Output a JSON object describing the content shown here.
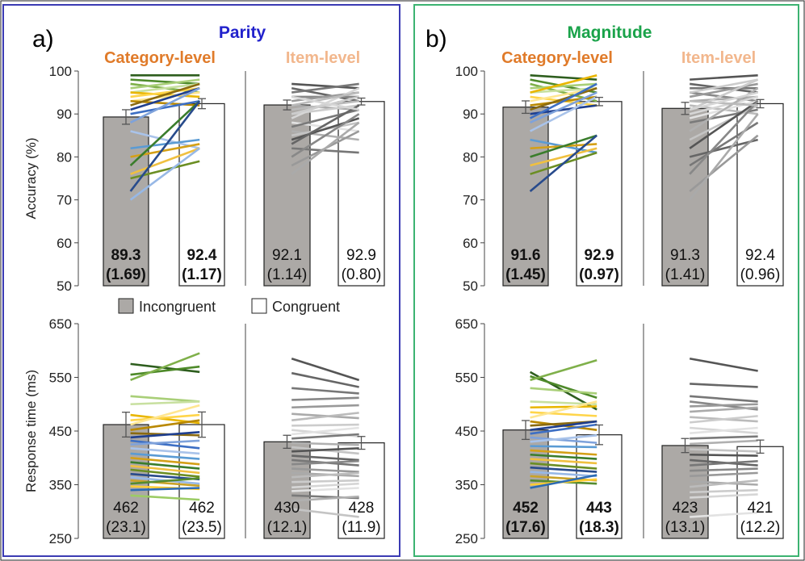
{
  "chart_data": {
    "type": "bar",
    "legend": {
      "items": [
        {
          "label": "Incongruent",
          "color": "#aca9a6"
        },
        {
          "label": "Congruent",
          "color": "#ffffff"
        }
      ],
      "placement": "center"
    },
    "panels": [
      {
        "letter": "a)",
        "task": "Parity",
        "task_color": "#2222cc",
        "border_color": "#3b3bb3",
        "ylabel_acc": "Accuracy (%)",
        "ylabel_rt": "Response time (ms)",
        "acc_ylim": [
          50,
          100
        ],
        "acc_ticks": [
          "50",
          "60",
          "70",
          "80",
          "90",
          "100"
        ],
        "rt_ylim": [
          250,
          650
        ],
        "rt_ticks": [
          "250",
          "350",
          "450",
          "550",
          "650"
        ],
        "conditions": [
          {
            "title": "Category-level",
            "title_color": "#e07b2a",
            "acc": {
              "values": [
                89.3,
                92.4
              ],
              "err": [
                1.69,
                1.17
              ],
              "labels": [
                "89.3",
                "92.4"
              ],
              "se": [
                "(1.69)",
                "(1.17)"
              ],
              "bold": true
            },
            "rt": {
              "values": [
                462,
                462
              ],
              "err": [
                23.1,
                23.5
              ],
              "labels": [
                "462",
                "462"
              ],
              "se": [
                "(23.1)",
                "(23.5)"
              ],
              "bold": false
            }
          },
          {
            "title": "Item-level",
            "title_color": "#f2b78d",
            "acc": {
              "values": [
                92.1,
                92.9
              ],
              "err": [
                1.14,
                0.8
              ],
              "labels": [
                "92.1",
                "92.9"
              ],
              "se": [
                "(1.14)",
                "(0.80)"
              ],
              "bold": false
            },
            "rt": {
              "values": [
                430,
                428
              ],
              "err": [
                12.1,
                11.9
              ],
              "labels": [
                "430",
                "428"
              ],
              "se": [
                "(12.1)",
                "(11.9)"
              ],
              "bold": false
            }
          }
        ]
      },
      {
        "letter": "b)",
        "task": "Magnitude",
        "task_color": "#1aa34a",
        "border_color": "#3cb371",
        "ylabel_acc": "",
        "ylabel_rt": "",
        "acc_ylim": [
          50,
          100
        ],
        "acc_ticks": [
          "50",
          "60",
          "70",
          "80",
          "90",
          "100"
        ],
        "rt_ylim": [
          250,
          650
        ],
        "rt_ticks": [
          "250",
          "350",
          "450",
          "550",
          "650"
        ],
        "conditions": [
          {
            "title": "Category-level",
            "title_color": "#e07b2a",
            "acc": {
              "values": [
                91.6,
                92.9
              ],
              "err": [
                1.45,
                0.97
              ],
              "labels": [
                "91.6",
                "92.9"
              ],
              "se": [
                "(1.45)",
                "(0.97)"
              ],
              "bold": true
            },
            "rt": {
              "values": [
                452,
                443
              ],
              "err": [
                17.6,
                18.3
              ],
              "labels": [
                "452",
                "443"
              ],
              "se": [
                "(17.6)",
                "(18.3)"
              ],
              "bold": true
            }
          },
          {
            "title": "Item-level",
            "title_color": "#f2b78d",
            "acc": {
              "values": [
                91.3,
                92.4
              ],
              "err": [
                1.41,
                0.96
              ],
              "labels": [
                "91.3",
                "92.4"
              ],
              "se": [
                "(1.41)",
                "(0.96)"
              ],
              "bold": false
            },
            "rt": {
              "values": [
                423,
                421
              ],
              "err": [
                13.1,
                12.2
              ],
              "labels": [
                "423",
                "421"
              ],
              "se": [
                "(13.1)",
                "(12.2)"
              ],
              "bold": false
            }
          }
        ]
      }
    ],
    "participant_lines": {
      "a_cat_acc": [
        [
          99,
          99
        ],
        [
          98,
          97
        ],
        [
          97,
          95
        ],
        [
          96,
          98
        ],
        [
          95,
          97
        ],
        [
          95,
          94
        ],
        [
          94,
          96
        ],
        [
          93,
          95
        ],
        [
          93,
          92
        ],
        [
          92,
          97
        ],
        [
          91,
          96
        ],
        [
          90,
          93
        ],
        [
          88,
          96
        ],
        [
          86,
          82
        ],
        [
          82,
          84
        ],
        [
          80,
          83
        ],
        [
          78,
          93
        ],
        [
          76,
          82
        ],
        [
          75,
          79
        ],
        [
          72,
          93
        ],
        [
          70,
          82
        ]
      ],
      "a_item_acc": [
        [
          97,
          96
        ],
        [
          96,
          93
        ],
        [
          95,
          97
        ],
        [
          94,
          94
        ],
        [
          93,
          95
        ],
        [
          92,
          91
        ],
        [
          91,
          93
        ],
        [
          90,
          92
        ],
        [
          89,
          96
        ],
        [
          88,
          86
        ],
        [
          87,
          91
        ],
        [
          86,
          84
        ],
        [
          85,
          88
        ],
        [
          84,
          89
        ],
        [
          83,
          92
        ],
        [
          82,
          81
        ],
        [
          80,
          90
        ],
        [
          78,
          86
        ],
        [
          76,
          88
        ],
        [
          92,
          95
        ],
        [
          90,
          94
        ],
        [
          94,
          91
        ]
      ],
      "b_cat_acc": [
        [
          99,
          98
        ],
        [
          98,
          95
        ],
        [
          97,
          93
        ],
        [
          96,
          97
        ],
        [
          95,
          96
        ],
        [
          95,
          99
        ],
        [
          94,
          92
        ],
        [
          93,
          96
        ],
        [
          92,
          94
        ],
        [
          91,
          96
        ],
        [
          90,
          92
        ],
        [
          89,
          97
        ],
        [
          88,
          95
        ],
        [
          86,
          94
        ],
        [
          84,
          81
        ],
        [
          82,
          83
        ],
        [
          80,
          85
        ],
        [
          78,
          82
        ],
        [
          76,
          81
        ],
        [
          72,
          85
        ]
      ],
      "b_item_acc": [
        [
          98,
          99
        ],
        [
          97,
          95
        ],
        [
          96,
          96
        ],
        [
          95,
          93
        ],
        [
          94,
          97
        ],
        [
          93,
          94
        ],
        [
          92,
          90
        ],
        [
          91,
          98
        ],
        [
          90,
          94
        ],
        [
          89,
          93
        ],
        [
          88,
          91
        ],
        [
          86,
          96
        ],
        [
          84,
          92
        ],
        [
          82,
          93
        ],
        [
          80,
          84
        ],
        [
          78,
          88
        ],
        [
          76,
          93
        ],
        [
          72,
          85
        ],
        [
          70,
          90
        ],
        [
          93,
          92
        ],
        [
          95,
          98
        ],
        [
          91,
          95
        ]
      ],
      "a_cat_rt": [
        [
          575,
          560
        ],
        [
          555,
          570
        ],
        [
          545,
          595
        ],
        [
          515,
          505
        ],
        [
          500,
          505
        ],
        [
          480,
          465
        ],
        [
          470,
          480
        ],
        [
          462,
          498
        ],
        [
          452,
          470
        ],
        [
          446,
          442
        ],
        [
          438,
          448
        ],
        [
          432,
          418
        ],
        [
          425,
          432
        ],
        [
          418,
          408
        ],
        [
          408,
          398
        ],
        [
          400,
          388
        ],
        [
          392,
          380
        ],
        [
          385,
          372
        ],
        [
          378,
          365
        ],
        [
          370,
          360
        ],
        [
          364,
          352
        ],
        [
          358,
          348
        ],
        [
          352,
          362
        ],
        [
          347,
          342
        ],
        [
          340,
          344
        ],
        [
          330,
          322
        ]
      ],
      "a_item_rt": [
        [
          585,
          545
        ],
        [
          558,
          532
        ],
        [
          530,
          520
        ],
        [
          508,
          512
        ],
        [
          494,
          498
        ],
        [
          482,
          474
        ],
        [
          470,
          484
        ],
        [
          460,
          462
        ],
        [
          452,
          440
        ],
        [
          444,
          456
        ],
        [
          436,
          444
        ],
        [
          428,
          424
        ],
        [
          420,
          408
        ],
        [
          412,
          418
        ],
        [
          404,
          396
        ],
        [
          396,
          386
        ],
        [
          388,
          394
        ],
        [
          380,
          374
        ],
        [
          372,
          366
        ],
        [
          364,
          372
        ],
        [
          355,
          358
        ],
        [
          345,
          352
        ],
        [
          338,
          344
        ],
        [
          330,
          325
        ],
        [
          320,
          328
        ],
        [
          305,
          290
        ]
      ],
      "b_cat_rt": [
        [
          560,
          490
        ],
        [
          552,
          512
        ],
        [
          545,
          582
        ],
        [
          530,
          520
        ],
        [
          505,
          500
        ],
        [
          494,
          496
        ],
        [
          485,
          478
        ],
        [
          475,
          505
        ],
        [
          468,
          452
        ],
        [
          460,
          468
        ],
        [
          452,
          468
        ],
        [
          445,
          462
        ],
        [
          438,
          428
        ],
        [
          430,
          442
        ],
        [
          422,
          420
        ],
        [
          414,
          406
        ],
        [
          406,
          398
        ],
        [
          398,
          390
        ],
        [
          390,
          380
        ],
        [
          382,
          374
        ],
        [
          374,
          366
        ],
        [
          366,
          358
        ],
        [
          358,
          352
        ],
        [
          350,
          360
        ],
        [
          344,
          368
        ]
      ],
      "b_item_rt": [
        [
          585,
          562
        ],
        [
          538,
          532
        ],
        [
          515,
          505
        ],
        [
          505,
          490
        ],
        [
          496,
          500
        ],
        [
          486,
          494
        ],
        [
          476,
          468
        ],
        [
          466,
          478
        ],
        [
          456,
          446
        ],
        [
          446,
          456
        ],
        [
          436,
          440
        ],
        [
          426,
          432
        ],
        [
          416,
          412
        ],
        [
          406,
          404
        ],
        [
          396,
          386
        ],
        [
          386,
          394
        ],
        [
          376,
          380
        ],
        [
          366,
          372
        ],
        [
          356,
          350
        ],
        [
          346,
          358
        ],
        [
          336,
          340
        ],
        [
          326,
          332
        ],
        [
          290,
          298
        ]
      ]
    }
  }
}
